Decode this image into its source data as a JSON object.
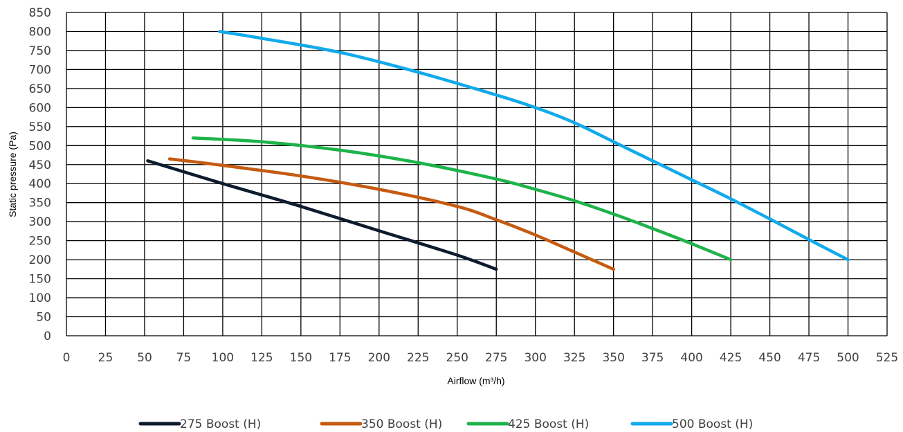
{
  "chart_data": {
    "type": "line",
    "title": "",
    "xlabel": "Airflow (m³/h)",
    "ylabel": "Static pressure (Pa)",
    "xlim": [
      0,
      525
    ],
    "ylim": [
      0,
      850
    ],
    "x_ticks": [
      "0",
      "25",
      "50",
      "75",
      "100",
      "125",
      "150",
      "175",
      "200",
      "225",
      "250",
      "275",
      "300",
      "325",
      "350",
      "375",
      "400",
      "425",
      "450",
      "475",
      "500",
      "525"
    ],
    "y_ticks": [
      "0",
      "50",
      "100",
      "150",
      "200",
      "250",
      "300",
      "350",
      "400",
      "450",
      "500",
      "550",
      "600",
      "650",
      "700",
      "750",
      "800",
      "850"
    ],
    "grid": true,
    "legend_position": "bottom",
    "series": [
      {
        "name": "275 Boost (H)",
        "color": "#0d1b2e",
        "points": [
          [
            52,
            460
          ],
          [
            100,
            400
          ],
          [
            150,
            340
          ],
          [
            200,
            276
          ],
          [
            250,
            212
          ],
          [
            275,
            175
          ]
        ]
      },
      {
        "name": "350 Boost (H)",
        "color": "#c55a11",
        "points": [
          [
            66,
            465
          ],
          [
            100,
            448
          ],
          [
            150,
            420
          ],
          [
            200,
            385
          ],
          [
            250,
            340
          ],
          [
            275,
            305
          ],
          [
            300,
            265
          ],
          [
            325,
            220
          ],
          [
            350,
            175
          ]
        ]
      },
      {
        "name": "425 Boost (H)",
        "color": "#1db34a",
        "points": [
          [
            81,
            520
          ],
          [
            125,
            510
          ],
          [
            175,
            488
          ],
          [
            225,
            455
          ],
          [
            275,
            412
          ],
          [
            300,
            385
          ],
          [
            325,
            355
          ],
          [
            350,
            320
          ],
          [
            375,
            282
          ],
          [
            400,
            242
          ],
          [
            425,
            200
          ]
        ]
      },
      {
        "name": "500 Boost (H)",
        "color": "#11aaea",
        "points": [
          [
            98,
            800
          ],
          [
            125,
            782
          ],
          [
            175,
            745
          ],
          [
            225,
            693
          ],
          [
            275,
            633
          ],
          [
            300,
            600
          ],
          [
            325,
            560
          ],
          [
            350,
            510
          ],
          [
            375,
            460
          ],
          [
            400,
            410
          ],
          [
            425,
            360
          ],
          [
            450,
            307
          ],
          [
            475,
            253
          ],
          [
            500,
            200
          ]
        ]
      }
    ]
  }
}
